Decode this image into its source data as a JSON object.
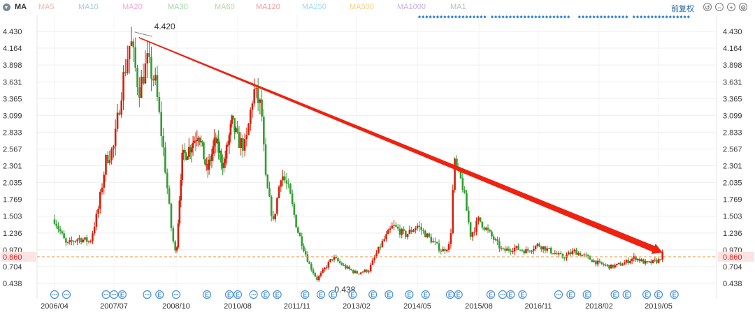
{
  "header": {
    "symbol": "MA",
    "ma_items": [
      {
        "label": "MA5",
        "color": "#f2b7a8"
      },
      {
        "label": "MA10",
        "color": "#a9c7e6"
      },
      {
        "label": "MA20",
        "color": "#f5a6d6"
      },
      {
        "label": "MA30",
        "color": "#a3d8a6"
      },
      {
        "label": "MA60",
        "color": "#b6d8a3"
      },
      {
        "label": "MA120",
        "color": "#f2a0a0"
      },
      {
        "label": "MA250",
        "color": "#9fd9ef"
      },
      {
        "label": "MA500",
        "color": "#f5d08a"
      },
      {
        "label": "MA1000",
        "color": "#c6b0e6"
      },
      {
        "label": "MA1",
        "color": "#bdbdbd"
      }
    ],
    "adjust_label": "前复权",
    "tools": [
      "undo-icon",
      "zoom-out-icon",
      "zoom-in-icon",
      "settings-icon"
    ]
  },
  "chart_data": {
    "type": "candlestick",
    "y_ticks": [
      "4.430",
      "4.164",
      "3.898",
      "3.631",
      "3.365",
      "3.099",
      "2.833",
      "2.567",
      "2.301",
      "2.035",
      "1.769",
      "1.503",
      "1.236",
      "0.970",
      "0.704",
      "0.438"
    ],
    "ylim": [
      0.438,
      4.43
    ],
    "x_ticks": [
      "2006/04",
      "2007/07",
      "2008/10",
      "2010/08",
      "2011/11",
      "2013/02",
      "2014/05",
      "2015/08",
      "2016/11",
      "2018/02",
      "2019/05"
    ],
    "current_price": "0.860",
    "max_annotation": "4.420",
    "min_annotation": "0.438",
    "trend_line": {
      "start": [
        "2008/01",
        4.42
      ],
      "end": [
        "2019/06",
        0.86
      ]
    },
    "series_shape": [
      [
        "2006/04",
        1.45
      ],
      [
        "2006/07",
        1.05
      ],
      [
        "2006/10",
        1.15
      ],
      [
        "2007/01",
        1.1
      ],
      [
        "2007/03",
        1.6
      ],
      [
        "2007/05",
        2.4
      ],
      [
        "2007/07",
        2.6
      ],
      [
        "2007/09",
        3.6
      ],
      [
        "2007/11",
        4.3
      ],
      [
        "2008/01",
        3.5
      ],
      [
        "2008/03",
        3.95
      ],
      [
        "2008/05",
        3.6
      ],
      [
        "2008/07",
        2.5
      ],
      [
        "2008/09",
        1.2
      ],
      [
        "2008/10",
        0.86
      ],
      [
        "2008/12",
        2.4
      ],
      [
        "2009/03",
        2.6
      ],
      [
        "2009/06",
        2.85
      ],
      [
        "2009/09",
        2.2
      ],
      [
        "2009/12",
        2.7
      ],
      [
        "2010/03",
        2.3
      ],
      [
        "2010/06",
        3.0
      ],
      [
        "2010/08",
        2.7
      ],
      [
        "2010/10",
        2.6
      ],
      [
        "2010/12",
        3.5
      ],
      [
        "2011/02",
        3.2
      ],
      [
        "2011/03",
        2.1
      ],
      [
        "2011/05",
        1.4
      ],
      [
        "2011/07",
        2.2
      ],
      [
        "2011/09",
        1.9
      ],
      [
        "2011/11",
        1.3
      ],
      [
        "2012/02",
        0.75
      ],
      [
        "2012/04",
        0.5
      ],
      [
        "2012/08",
        0.85
      ],
      [
        "2012/11",
        0.7
      ],
      [
        "2013/02",
        0.6
      ],
      [
        "2013/05",
        0.65
      ],
      [
        "2013/08",
        1.05
      ],
      [
        "2013/11",
        1.35
      ],
      [
        "2014/02",
        1.2
      ],
      [
        "2014/05",
        1.35
      ],
      [
        "2014/08",
        1.15
      ],
      [
        "2014/11",
        0.95
      ],
      [
        "2015/01",
        1.05
      ],
      [
        "2015/02",
        2.35
      ],
      [
        "2015/04",
        2.0
      ],
      [
        "2015/06",
        1.2
      ],
      [
        "2015/08",
        1.45
      ],
      [
        "2015/11",
        1.2
      ],
      [
        "2016/02",
        0.95
      ],
      [
        "2016/05",
        1.0
      ],
      [
        "2016/08",
        0.95
      ],
      [
        "2016/11",
        1.05
      ],
      [
        "2017/02",
        0.95
      ],
      [
        "2017/05",
        0.85
      ],
      [
        "2017/08",
        0.95
      ],
      [
        "2017/11",
        0.85
      ],
      [
        "2018/02",
        0.75
      ],
      [
        "2018/05",
        0.7
      ],
      [
        "2018/08",
        0.75
      ],
      [
        "2018/11",
        0.85
      ],
      [
        "2019/02",
        0.75
      ],
      [
        "2019/05",
        0.8
      ],
      [
        "2019/06",
        0.9
      ]
    ],
    "event_markers": [
      {
        "date": "2006/04",
        "type": "dots"
      },
      {
        "date": "2006/07",
        "type": "dots"
      },
      {
        "date": "2007/05",
        "type": "dots"
      },
      {
        "date": "2007/07",
        "type": "dots"
      },
      {
        "date": "2007/09",
        "type": "E"
      },
      {
        "date": "2008/03",
        "type": "dots"
      },
      {
        "date": "2008/06",
        "type": "E"
      },
      {
        "date": "2008/10",
        "type": "dots"
      },
      {
        "date": "2009/09",
        "type": "E"
      },
      {
        "date": "2010/05",
        "type": "E"
      },
      {
        "date": "2010/08",
        "type": "E"
      },
      {
        "date": "2010/12",
        "type": "dots"
      },
      {
        "date": "2011/03",
        "type": "E"
      },
      {
        "date": "2011/06",
        "type": "E"
      },
      {
        "date": "2012/01",
        "type": "E"
      },
      {
        "date": "2012/05",
        "type": "E"
      },
      {
        "date": "2012/08",
        "type": "E"
      },
      {
        "date": "2013/01",
        "type": "E"
      },
      {
        "date": "2013/06",
        "type": "E"
      },
      {
        "date": "2013/10",
        "type": "E"
      },
      {
        "date": "2014/03",
        "type": "E"
      },
      {
        "date": "2014/07",
        "type": "E"
      },
      {
        "date": "2015/01",
        "type": "E"
      },
      {
        "date": "2015/03",
        "type": "E"
      },
      {
        "date": "2015/11",
        "type": "E"
      },
      {
        "date": "2016/02",
        "type": "dots"
      },
      {
        "date": "2016/04",
        "type": "E"
      },
      {
        "date": "2016/07",
        "type": "E"
      },
      {
        "date": "2017/04",
        "type": "dots"
      },
      {
        "date": "2017/07",
        "type": "E"
      },
      {
        "date": "2017/11",
        "type": "E"
      },
      {
        "date": "2018/06",
        "type": "E"
      },
      {
        "date": "2018/09",
        "type": "E"
      },
      {
        "date": "2019/02",
        "type": "E"
      },
      {
        "date": "2019/05",
        "type": "E"
      },
      {
        "date": "2019/09",
        "type": "E"
      }
    ],
    "colors": {
      "up": "#d81e06",
      "down": "#2f9e2f",
      "grid": "#eeeeee",
      "trend": "#ee2211",
      "price_line": "#f0a050",
      "price_label": "#e02020",
      "marker": "#4a90d9",
      "dots_row": "#2a80e0"
    }
  }
}
